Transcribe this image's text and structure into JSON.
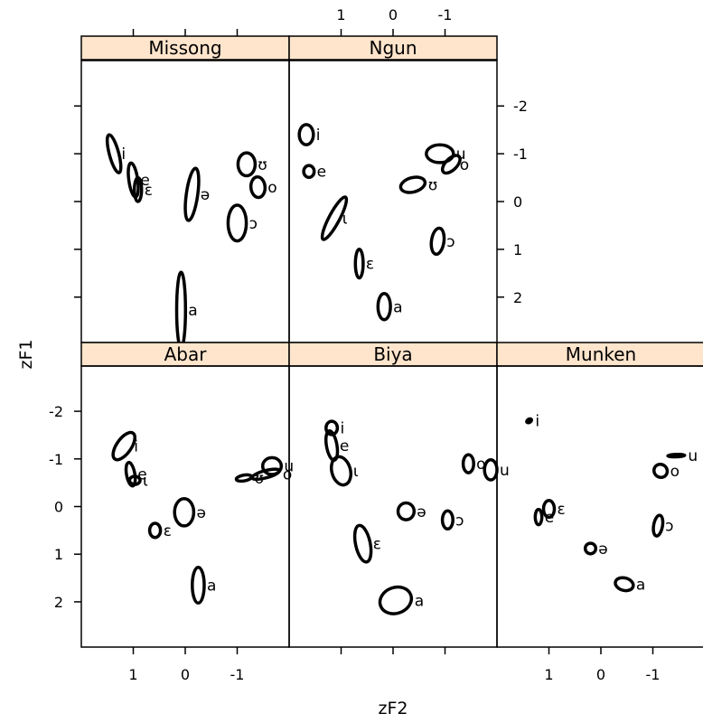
{
  "chart_data": {
    "type": "scatter",
    "subtype": "trellis confidence ellipses of vowels",
    "xlabel": "zF2",
    "ylabel": "zF1",
    "x_reversed": true,
    "y_reversed": true,
    "xlim": [
      2.0,
      -2.0
    ],
    "ylim": [
      2.95,
      -2.95
    ],
    "x_ticks": [
      1,
      0,
      -1
    ],
    "y_ticks": [
      -2,
      -1,
      0,
      1,
      2
    ],
    "grid": false,
    "legend": "none",
    "panels": [
      {
        "name": "Missong",
        "vowels": [
          {
            "label": "i",
            "x": 1.37,
            "y": -1.0,
            "w": 0.18,
            "h": 0.82,
            "angle": -15
          },
          {
            "label": "e",
            "x": 1.0,
            "y": -0.45,
            "w": 0.17,
            "h": 0.72,
            "angle": -8
          },
          {
            "label": "ɛ",
            "x": 0.91,
            "y": -0.25,
            "w": 0.14,
            "h": 0.5,
            "angle": 0
          },
          {
            "label": "ə",
            "x": -0.13,
            "y": -0.15,
            "w": 0.22,
            "h": 1.1,
            "angle": 8
          },
          {
            "label": "a",
            "x": 0.08,
            "y": 2.27,
            "w": 0.17,
            "h": 1.58,
            "angle": 0
          },
          {
            "label": "ʊ",
            "x": -1.18,
            "y": -0.78,
            "w": 0.33,
            "h": 0.48,
            "angle": 0
          },
          {
            "label": "o",
            "x": -1.4,
            "y": -0.3,
            "w": 0.27,
            "h": 0.43,
            "angle": -5
          },
          {
            "label": "ɔ",
            "x": -1.0,
            "y": 0.45,
            "w": 0.35,
            "h": 0.75,
            "angle": 0
          }
        ]
      },
      {
        "name": "Ngun",
        "vowels": [
          {
            "label": "i",
            "x": 1.67,
            "y": -1.4,
            "w": 0.27,
            "h": 0.42,
            "angle": 0
          },
          {
            "label": "e",
            "x": 1.62,
            "y": -0.63,
            "w": 0.2,
            "h": 0.25,
            "angle": 0
          },
          {
            "label": "ɩ",
            "x": 1.13,
            "y": 0.35,
            "w": 0.2,
            "h": 1.0,
            "angle": 28
          },
          {
            "label": "ɛ",
            "x": 0.65,
            "y": 1.3,
            "w": 0.15,
            "h": 0.6,
            "angle": 0
          },
          {
            "label": "a",
            "x": 0.17,
            "y": 2.2,
            "w": 0.24,
            "h": 0.55,
            "angle": 0
          },
          {
            "label": "u",
            "x": -0.9,
            "y": -1.0,
            "w": 0.52,
            "h": 0.37,
            "angle": 0
          },
          {
            "label": "o",
            "x": -1.12,
            "y": -0.78,
            "w": 0.22,
            "h": 0.46,
            "angle": 45
          },
          {
            "label": "ʊ",
            "x": -0.38,
            "y": -0.35,
            "w": 0.48,
            "h": 0.3,
            "angle": -15
          },
          {
            "label": "ɔ",
            "x": -0.86,
            "y": 0.83,
            "w": 0.24,
            "h": 0.55,
            "angle": 8
          }
        ]
      },
      {
        "name": "Abar",
        "vowels": [
          {
            "label": "i",
            "x": 1.18,
            "y": -1.27,
            "w": 0.28,
            "h": 0.66,
            "angle": 35
          },
          {
            "label": "e",
            "x": 1.05,
            "y": -0.68,
            "w": 0.16,
            "h": 0.5,
            "angle": -10
          },
          {
            "label": "ɩ",
            "x": 0.97,
            "y": -0.55,
            "w": 0.2,
            "h": 0.17,
            "angle": 0
          },
          {
            "label": "ə",
            "x": 0.02,
            "y": 0.12,
            "w": 0.37,
            "h": 0.57,
            "angle": 0
          },
          {
            "label": "ɛ",
            "x": 0.58,
            "y": 0.5,
            "w": 0.21,
            "h": 0.3,
            "angle": 0
          },
          {
            "label": "a",
            "x": -0.25,
            "y": 1.65,
            "w": 0.23,
            "h": 0.75,
            "angle": 0
          },
          {
            "label": "u",
            "x": -1.67,
            "y": -0.85,
            "w": 0.36,
            "h": 0.35,
            "angle": 0
          },
          {
            "label": "o",
            "x": -1.55,
            "y": -0.68,
            "w": 0.55,
            "h": 0.15,
            "angle": -15
          },
          {
            "label": "ʊ",
            "x": -1.13,
            "y": -0.6,
            "w": 0.3,
            "h": 0.12,
            "angle": -10
          }
        ]
      },
      {
        "name": "Biya",
        "vowels": [
          {
            "label": "i",
            "x": 1.18,
            "y": -1.65,
            "w": 0.22,
            "h": 0.28,
            "angle": 0
          },
          {
            "label": "e",
            "x": 1.18,
            "y": -1.28,
            "w": 0.2,
            "h": 0.62,
            "angle": -10
          },
          {
            "label": "ɩ",
            "x": 1.0,
            "y": -0.75,
            "w": 0.36,
            "h": 0.6,
            "angle": -15
          },
          {
            "label": "ɛ",
            "x": 0.58,
            "y": 0.78,
            "w": 0.28,
            "h": 0.78,
            "angle": -12
          },
          {
            "label": "a",
            "x": -0.05,
            "y": 1.97,
            "w": 0.62,
            "h": 0.54,
            "angle": -20
          },
          {
            "label": "ə",
            "x": -0.25,
            "y": 0.1,
            "w": 0.31,
            "h": 0.35,
            "angle": 0
          },
          {
            "label": "ɔ",
            "x": -1.05,
            "y": 0.28,
            "w": 0.2,
            "h": 0.38,
            "angle": 0
          },
          {
            "label": "o",
            "x": -1.45,
            "y": -0.9,
            "w": 0.2,
            "h": 0.38,
            "angle": 0
          },
          {
            "label": "u",
            "x": -1.88,
            "y": -0.77,
            "w": 0.24,
            "h": 0.42,
            "angle": 0
          }
        ]
      },
      {
        "name": "Munken",
        "vowels": [
          {
            "label": "i",
            "x": 1.38,
            "y": -1.8,
            "w": 0.13,
            "h": 0.1,
            "angle": -30,
            "filled": true
          },
          {
            "label": "e",
            "x": 1.2,
            "y": 0.22,
            "w": 0.13,
            "h": 0.32,
            "angle": 0
          },
          {
            "label": "ɛ",
            "x": 1.0,
            "y": 0.05,
            "w": 0.21,
            "h": 0.35,
            "angle": 0
          },
          {
            "label": "ə",
            "x": 0.2,
            "y": 0.88,
            "w": 0.2,
            "h": 0.22,
            "angle": 0
          },
          {
            "label": "a",
            "x": -0.45,
            "y": 1.63,
            "w": 0.35,
            "h": 0.26,
            "angle": 15
          },
          {
            "label": "u",
            "x": -1.45,
            "y": -1.07,
            "w": 0.35,
            "h": 0.08,
            "angle": -2,
            "filled": true
          },
          {
            "label": "o",
            "x": -1.15,
            "y": -0.75,
            "w": 0.26,
            "h": 0.27,
            "angle": 40
          },
          {
            "label": "ɔ",
            "x": -1.1,
            "y": 0.4,
            "w": 0.17,
            "h": 0.44,
            "angle": 10
          }
        ]
      }
    ]
  }
}
